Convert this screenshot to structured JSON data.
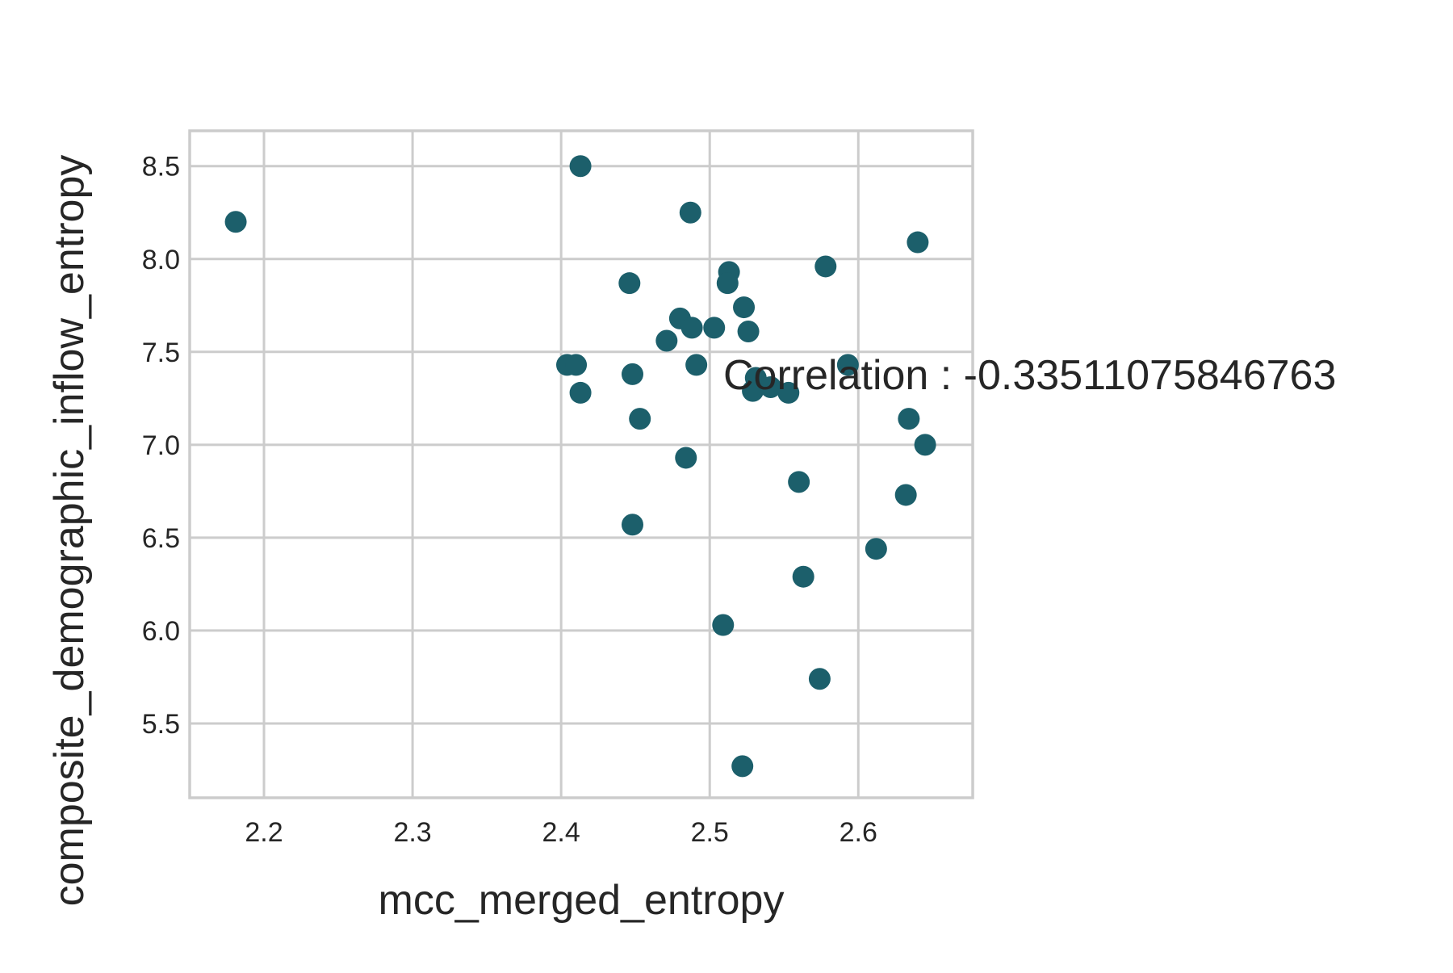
{
  "chart_data": {
    "type": "scatter",
    "xlabel": "mcc_merged_entropy",
    "ylabel": "composite_demographic_inflow_entropy",
    "annotation": "Correlation : -0.33511075846763",
    "xlim": [
      2.15,
      2.677
    ],
    "ylim": [
      5.1,
      8.69
    ],
    "x_ticks": [
      {
        "value": 2.2,
        "label": "2.2"
      },
      {
        "value": 2.3,
        "label": "2.3"
      },
      {
        "value": 2.4,
        "label": "2.4"
      },
      {
        "value": 2.5,
        "label": "2.5"
      },
      {
        "value": 2.6,
        "label": "2.6"
      }
    ],
    "y_ticks": [
      {
        "value": 5.5,
        "label": "5.5"
      },
      {
        "value": 6.0,
        "label": "6.0"
      },
      {
        "value": 6.5,
        "label": "6.5"
      },
      {
        "value": 7.0,
        "label": "7.0"
      },
      {
        "value": 7.5,
        "label": "7.5"
      },
      {
        "value": 8.0,
        "label": "8.0"
      },
      {
        "value": 8.5,
        "label": "8.5"
      }
    ],
    "grid": true,
    "marker_color": "#1c5f6b",
    "points": [
      {
        "x": 2.181,
        "y": 8.2
      },
      {
        "x": 2.413,
        "y": 8.5
      },
      {
        "x": 2.487,
        "y": 8.25
      },
      {
        "x": 2.64,
        "y": 8.09
      },
      {
        "x": 2.578,
        "y": 7.96
      },
      {
        "x": 2.513,
        "y": 7.93
      },
      {
        "x": 2.446,
        "y": 7.87
      },
      {
        "x": 2.512,
        "y": 7.87
      },
      {
        "x": 2.523,
        "y": 7.74
      },
      {
        "x": 2.48,
        "y": 7.68
      },
      {
        "x": 2.488,
        "y": 7.63
      },
      {
        "x": 2.503,
        "y": 7.63
      },
      {
        "x": 2.526,
        "y": 7.61
      },
      {
        "x": 2.471,
        "y": 7.56
      },
      {
        "x": 2.404,
        "y": 7.43
      },
      {
        "x": 2.41,
        "y": 7.43
      },
      {
        "x": 2.491,
        "y": 7.43
      },
      {
        "x": 2.593,
        "y": 7.43
      },
      {
        "x": 2.448,
        "y": 7.38
      },
      {
        "x": 2.531,
        "y": 7.36
      },
      {
        "x": 2.541,
        "y": 7.31
      },
      {
        "x": 2.529,
        "y": 7.29
      },
      {
        "x": 2.553,
        "y": 7.28
      },
      {
        "x": 2.413,
        "y": 7.28
      },
      {
        "x": 2.453,
        "y": 7.14
      },
      {
        "x": 2.634,
        "y": 7.14
      },
      {
        "x": 2.645,
        "y": 7.0
      },
      {
        "x": 2.484,
        "y": 6.93
      },
      {
        "x": 2.56,
        "y": 6.8
      },
      {
        "x": 2.632,
        "y": 6.73
      },
      {
        "x": 2.448,
        "y": 6.57
      },
      {
        "x": 2.612,
        "y": 6.44
      },
      {
        "x": 2.563,
        "y": 6.29
      },
      {
        "x": 2.509,
        "y": 6.03
      },
      {
        "x": 2.574,
        "y": 5.74
      },
      {
        "x": 2.522,
        "y": 5.27
      }
    ]
  }
}
